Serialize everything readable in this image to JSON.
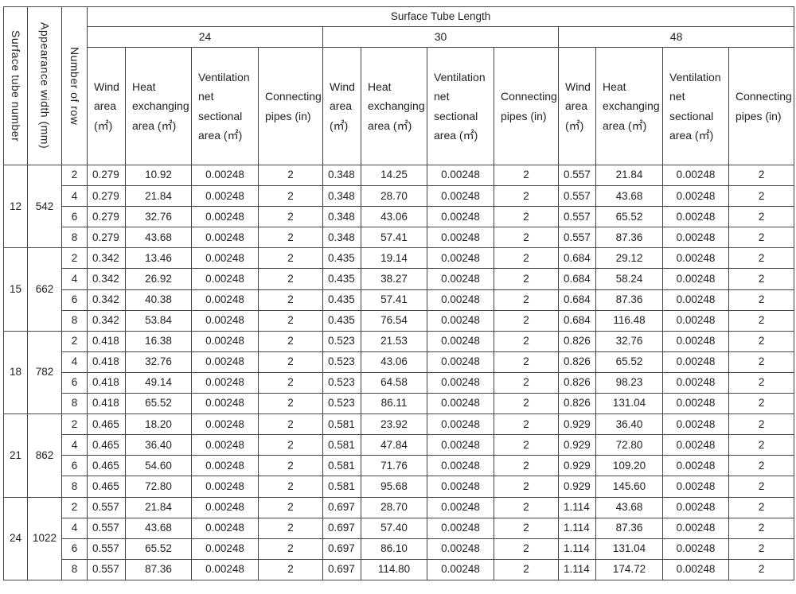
{
  "header": {
    "surface_tube_number": "Surface tube number",
    "appearance_width": "Appearance width (mm)",
    "number_of_row": "Number of row",
    "surface_tube_length": "Surface Tube Length",
    "lengths": [
      "24",
      "30",
      "48"
    ],
    "sub_columns": [
      "Wind area (㎡)",
      "Heat exchanging area (㎡)",
      "Ventilation net sectional area (㎡)",
      "Connecting pipes (in)"
    ]
  },
  "groups": [
    {
      "tube": "12",
      "width": "542",
      "rows": [
        {
          "n": "2",
          "v": [
            "0.279",
            "10.92",
            "0.00248",
            "2",
            "0.348",
            "14.25",
            "0.00248",
            "2",
            "0.557",
            "21.84",
            "0.00248",
            "2"
          ]
        },
        {
          "n": "4",
          "v": [
            "0.279",
            "21.84",
            "0.00248",
            "2",
            "0.348",
            "28.70",
            "0.00248",
            "2",
            "0.557",
            "43.68",
            "0.00248",
            "2"
          ]
        },
        {
          "n": "6",
          "v": [
            "0.279",
            "32.76",
            "0.00248",
            "2",
            "0.348",
            "43.06",
            "0.00248",
            "2",
            "0.557",
            "65.52",
            "0.00248",
            "2"
          ]
        },
        {
          "n": "8",
          "v": [
            "0.279",
            "43.68",
            "0.00248",
            "2",
            "0.348",
            "57.41",
            "0.00248",
            "2",
            "0.557",
            "87.36",
            "0.00248",
            "2"
          ]
        }
      ]
    },
    {
      "tube": "15",
      "width": "662",
      "rows": [
        {
          "n": "2",
          "v": [
            "0.342",
            "13.46",
            "0.00248",
            "2",
            "0.435",
            "19.14",
            "0.00248",
            "2",
            "0.684",
            "29.12",
            "0.00248",
            "2"
          ]
        },
        {
          "n": "4",
          "v": [
            "0.342",
            "26.92",
            "0.00248",
            "2",
            "0.435",
            "38.27",
            "0.00248",
            "2",
            "0.684",
            "58.24",
            "0.00248",
            "2"
          ]
        },
        {
          "n": "6",
          "v": [
            "0.342",
            "40.38",
            "0.00248",
            "2",
            "0.435",
            "57.41",
            "0.00248",
            "2",
            "0.684",
            "87.36",
            "0.00248",
            "2"
          ]
        },
        {
          "n": "8",
          "v": [
            "0.342",
            "53.84",
            "0.00248",
            "2",
            "0.435",
            "76.54",
            "0.00248",
            "2",
            "0.684",
            "116.48",
            "0.00248",
            "2"
          ]
        }
      ]
    },
    {
      "tube": "18",
      "width": "782",
      "rows": [
        {
          "n": "2",
          "v": [
            "0.418",
            "16.38",
            "0.00248",
            "2",
            "0.523",
            "21.53",
            "0.00248",
            "2",
            "0.826",
            "32.76",
            "0.00248",
            "2"
          ]
        },
        {
          "n": "4",
          "v": [
            "0.418",
            "32.76",
            "0.00248",
            "2",
            "0.523",
            "43.06",
            "0.00248",
            "2",
            "0.826",
            "65.52",
            "0.00248",
            "2"
          ]
        },
        {
          "n": "6",
          "v": [
            "0.418",
            "49.14",
            "0.00248",
            "2",
            "0.523",
            "64.58",
            "0.00248",
            "2",
            "0.826",
            "98.23",
            "0.00248",
            "2"
          ]
        },
        {
          "n": "8",
          "v": [
            "0.418",
            "65.52",
            "0.00248",
            "2",
            "0.523",
            "86.11",
            "0.00248",
            "2",
            "0.826",
            "131.04",
            "0.00248",
            "2"
          ]
        }
      ]
    },
    {
      "tube": "21",
      "width": "862",
      "rows": [
        {
          "n": "2",
          "v": [
            "0.465",
            "18.20",
            "0.00248",
            "2",
            "0.581",
            "23.92",
            "0.00248",
            "2",
            "0.929",
            "36.40",
            "0.00248",
            "2"
          ]
        },
        {
          "n": "4",
          "v": [
            "0.465",
            "36.40",
            "0.00248",
            "2",
            "0.581",
            "47.84",
            "0.00248",
            "2",
            "0.929",
            "72.80",
            "0.00248",
            "2"
          ]
        },
        {
          "n": "6",
          "v": [
            "0.465",
            "54.60",
            "0.00248",
            "2",
            "0.581",
            "71.76",
            "0.00248",
            "2",
            "0.929",
            "109.20",
            "0.00248",
            "2"
          ]
        },
        {
          "n": "8",
          "v": [
            "0.465",
            "72.80",
            "0.00248",
            "2",
            "0.581",
            "95.68",
            "0.00248",
            "2",
            "0.929",
            "145.60",
            "0.00248",
            "2"
          ]
        }
      ]
    },
    {
      "tube": "24",
      "width": "1022",
      "rows": [
        {
          "n": "2",
          "v": [
            "0.557",
            "21.84",
            "0.00248",
            "2",
            "0.697",
            "28.70",
            "0.00248",
            "2",
            "1.114",
            "43.68",
            "0.00248",
            "2"
          ]
        },
        {
          "n": "4",
          "v": [
            "0.557",
            "43.68",
            "0.00248",
            "2",
            "0.697",
            "57.40",
            "0.00248",
            "2",
            "1.114",
            "87.36",
            "0.00248",
            "2"
          ]
        },
        {
          "n": "6",
          "v": [
            "0.557",
            "65.52",
            "0.00248",
            "2",
            "0.697",
            "86.10",
            "0.00248",
            "2",
            "1.114",
            "131.04",
            "0.00248",
            "2"
          ]
        },
        {
          "n": "8",
          "v": [
            "0.557",
            "87.36",
            "0.00248",
            "2",
            "0.697",
            "114.80",
            "0.00248",
            "2",
            "1.114",
            "174.72",
            "0.00248",
            "2"
          ]
        }
      ]
    }
  ]
}
